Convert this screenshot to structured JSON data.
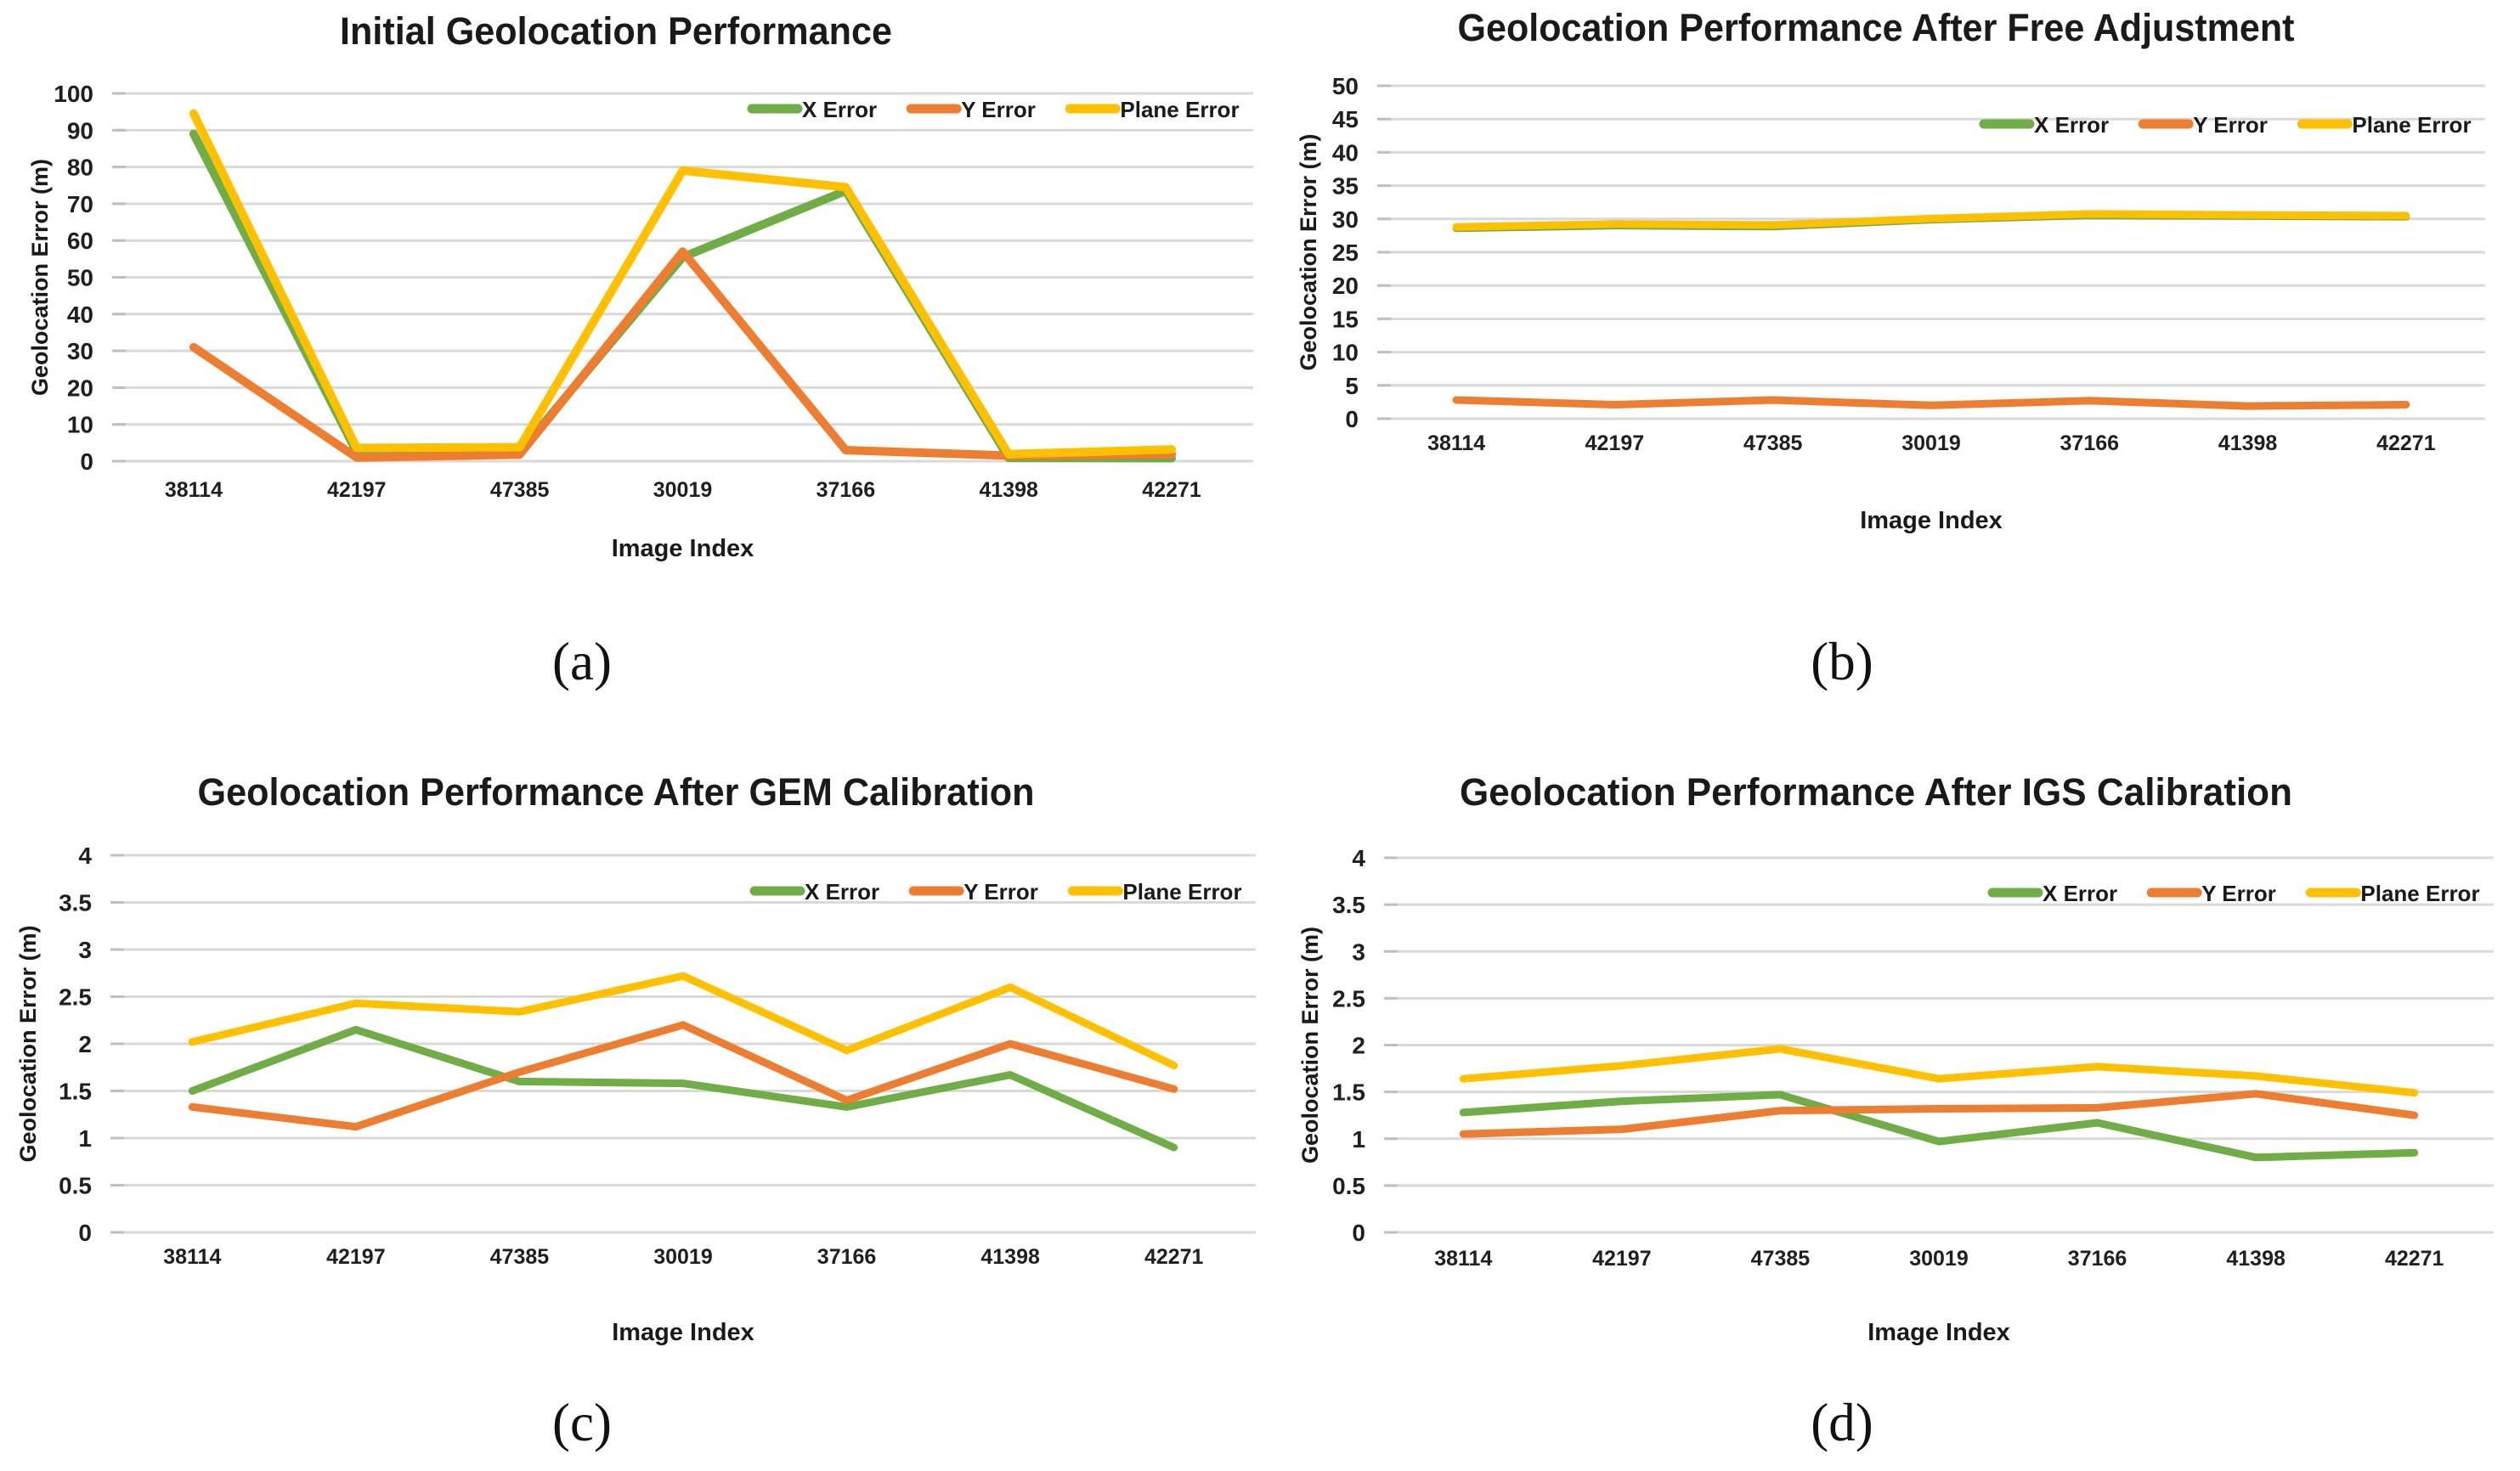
{
  "figure": {
    "background": "#ffffff",
    "gridline_color": "#d9d9d9",
    "text_color": "#1f1f1f",
    "captions": [
      "(a)",
      "(b)",
      "(c)",
      "(d)"
    ]
  },
  "chart_data": [
    {
      "key": "a",
      "type": "line",
      "title": "Initial Geolocation Performance",
      "xlabel": "Image Index",
      "ylabel": "Geolocation Error (m)",
      "caption": "(a)",
      "ylim": [
        0,
        100
      ],
      "ytick_step": 10,
      "grid": true,
      "legend_position": "top-right-inside",
      "categories": [
        "38114",
        "42197",
        "47385",
        "30019",
        "37166",
        "41398",
        "42271"
      ],
      "series": [
        {
          "name": "X Error",
          "color": "#70AD47",
          "values": [
            89,
            2.5,
            2.5,
            55.5,
            73.5,
            0.9,
            0.8
          ]
        },
        {
          "name": "Y Error",
          "color": "#ED7D31",
          "values": [
            31,
            1.0,
            1.8,
            57,
            3.0,
            1.5,
            1.9
          ]
        },
        {
          "name": "Plane Error",
          "color": "#FFC000",
          "values": [
            94.5,
            3.6,
            3.8,
            79,
            74.5,
            1.9,
            3.2
          ]
        }
      ]
    },
    {
      "key": "b",
      "type": "line",
      "title": "Geolocation Performance After Free Adjustment",
      "xlabel": "Image Index",
      "ylabel": "Geolocation Error (m)",
      "caption": "(b)",
      "ylim": [
        0,
        50
      ],
      "ytick_step": 5,
      "grid": true,
      "legend_position": "top-right-inside",
      "categories": [
        "38114",
        "42197",
        "47385",
        "30019",
        "37166",
        "41398",
        "42271"
      ],
      "series": [
        {
          "name": "X Error",
          "color": "#70AD47",
          "values": [
            28.6,
            29.0,
            28.85,
            29.9,
            30.55,
            30.45,
            30.35
          ]
        },
        {
          "name": "Y Error",
          "color": "#ED7D31",
          "values": [
            2.8,
            2.1,
            2.8,
            2.0,
            2.7,
            1.9,
            2.1
          ]
        },
        {
          "name": "Plane Error",
          "color": "#FFC000",
          "values": [
            28.8,
            29.25,
            29.1,
            30.05,
            30.75,
            30.6,
            30.5
          ]
        }
      ]
    },
    {
      "key": "c",
      "type": "line",
      "title": "Geolocation Performance After GEM Calibration",
      "xlabel": "Image Index",
      "ylabel": "Geolocation Error (m)",
      "caption": "(c)",
      "ylim": [
        0,
        4
      ],
      "ytick_step": 0.5,
      "grid": true,
      "legend_position": "top-right-inside",
      "categories": [
        "38114",
        "42197",
        "47385",
        "30019",
        "37166",
        "41398",
        "42271"
      ],
      "series": [
        {
          "name": "X Error",
          "color": "#70AD47",
          "values": [
            1.5,
            2.15,
            1.6,
            1.58,
            1.33,
            1.67,
            0.9
          ]
        },
        {
          "name": "Y Error",
          "color": "#ED7D31",
          "values": [
            1.33,
            1.12,
            1.7,
            2.2,
            1.4,
            2.0,
            1.52
          ]
        },
        {
          "name": "Plane Error",
          "color": "#FFC000",
          "values": [
            2.02,
            2.43,
            2.34,
            2.72,
            1.93,
            2.6,
            1.77
          ]
        }
      ]
    },
    {
      "key": "d",
      "type": "line",
      "title": "Geolocation Performance After IGS Calibration",
      "xlabel": "Image Index",
      "ylabel": "Geolocation Error (m)",
      "caption": "(d)",
      "ylim": [
        0,
        4
      ],
      "ytick_step": 0.5,
      "grid": true,
      "legend_position": "top-right-inside",
      "categories": [
        "38114",
        "42197",
        "47385",
        "30019",
        "37166",
        "41398",
        "42271"
      ],
      "series": [
        {
          "name": "X Error",
          "color": "#70AD47",
          "values": [
            1.28,
            1.4,
            1.47,
            0.97,
            1.17,
            0.8,
            0.85
          ]
        },
        {
          "name": "Y Error",
          "color": "#ED7D31",
          "values": [
            1.05,
            1.1,
            1.3,
            1.32,
            1.33,
            1.48,
            1.25
          ]
        },
        {
          "name": "Plane Error",
          "color": "#FFC000",
          "values": [
            1.64,
            1.78,
            1.96,
            1.64,
            1.77,
            1.67,
            1.49
          ]
        }
      ]
    }
  ]
}
